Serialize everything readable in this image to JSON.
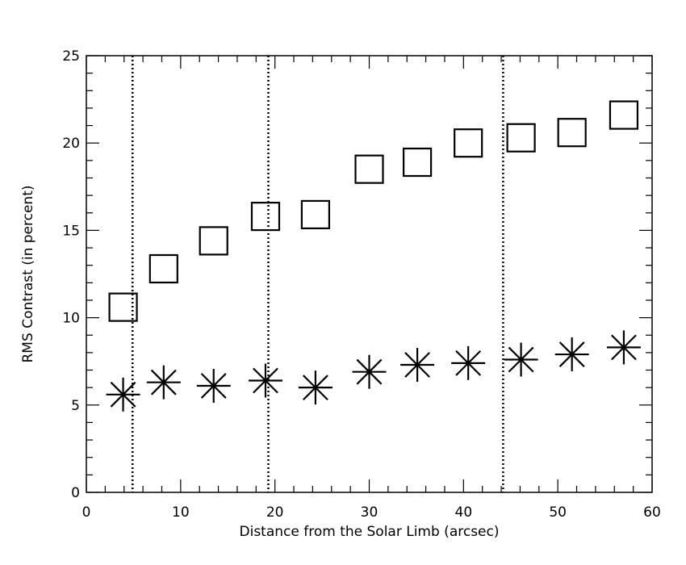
{
  "chart_data": {
    "type": "scatter",
    "xlabel": "Distance from the Solar Limb (arcsec)",
    "ylabel": "RMS Contrast (in percent)",
    "xlim": [
      0,
      60
    ],
    "ylim": [
      0,
      25
    ],
    "xticks": [
      0,
      10,
      20,
      30,
      40,
      50,
      60
    ],
    "yticks": [
      0,
      5,
      10,
      15,
      20,
      25
    ],
    "grid": false,
    "vertical_lines": [
      4.9,
      19.3,
      44.2
    ],
    "series": [
      {
        "marker": "square",
        "x": [
          3.9,
          8.2,
          13.5,
          19.0,
          24.3,
          30.0,
          35.1,
          40.5,
          46.1,
          51.5,
          57.0
        ],
        "y": [
          10.6,
          12.8,
          14.4,
          15.8,
          15.9,
          18.5,
          18.9,
          20.0,
          20.3,
          20.6,
          21.6
        ]
      },
      {
        "marker": "asterisk",
        "x": [
          3.9,
          8.2,
          13.5,
          19.0,
          24.3,
          30.0,
          35.1,
          40.5,
          46.1,
          51.5,
          57.0
        ],
        "y": [
          5.6,
          6.3,
          6.1,
          6.4,
          6.0,
          6.9,
          7.3,
          7.4,
          7.6,
          7.9,
          8.3
        ]
      }
    ]
  }
}
